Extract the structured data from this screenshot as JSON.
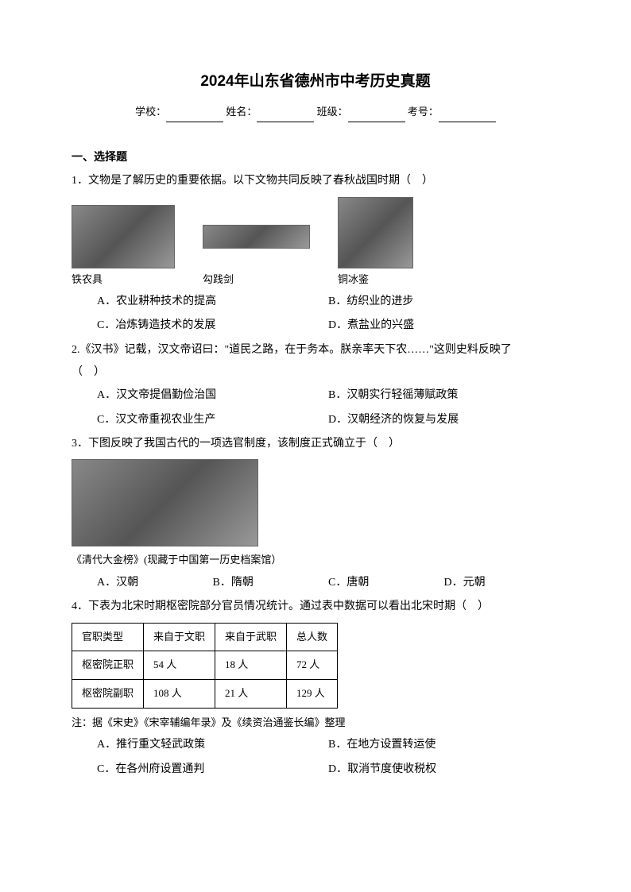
{
  "title": "2024年山东省德州市中考历史真题",
  "formLine": {
    "school": "学校：",
    "name": "姓名：",
    "class": "班级：",
    "examNo": "考号："
  },
  "sectionHeader": "一、选择题",
  "q1": {
    "text": "1．文物是了解历史的重要依据。以下文物共同反映了春秋战国时期（　）",
    "captions": [
      "铁农具",
      "勾践剑",
      "铜冰鉴"
    ],
    "options": {
      "a": "A．农业耕种技术的提高",
      "b": "B．纺织业的进步",
      "c": "C．冶炼铸造技术的发展",
      "d": "D．煮盐业的兴盛"
    }
  },
  "q2": {
    "text1": "2.《汉书》记载，汉文帝诏曰：\"道民之路，在于务本。朕亲率天下农……\"这则史料反映了",
    "text2": "（　）",
    "options": {
      "a": "A．汉文帝提倡勤俭治国",
      "b": "B．汉朝实行轻徭薄赋政策",
      "c": "C．汉文帝重视农业生产",
      "d": "D．汉朝经济的恢复与发展"
    }
  },
  "q3": {
    "text": "3．下图反映了我国古代的一项选官制度，该制度正式确立于（　）",
    "caption": "《清代大金榜》(现藏于中国第一历史档案馆）",
    "options": {
      "a": "A．汉朝",
      "b": "B．隋朝",
      "c": "C．唐朝",
      "d": "D．元朝"
    }
  },
  "q4": {
    "text": "4．下表为北宋时期枢密院部分官员情况统计。通过表中数据可以看出北宋时期（　）",
    "table": {
      "headers": [
        "官职类型",
        "来自于文职",
        "来自于武职",
        "总人数"
      ],
      "rows": [
        [
          "枢密院正职",
          "54 人",
          "18 人",
          "72 人"
        ],
        [
          "枢密院副职",
          "108 人",
          "21 人",
          "129 人"
        ]
      ]
    },
    "note": "注：据《宋史》《宋宰辅编年录》及《续资治通鉴长编》整理",
    "options": {
      "a": "A．推行重文轻武政策",
      "b": "B．在地方设置转运使",
      "c": "C．在各州府设置通判",
      "d": "D．取消节度使收税权"
    }
  }
}
